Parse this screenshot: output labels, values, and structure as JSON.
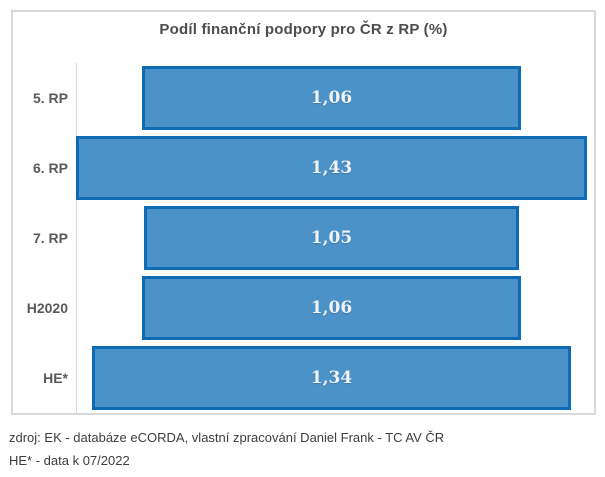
{
  "chart": {
    "title": "Podíl finanční podpory pro ČR z RP (%)"
  },
  "footer": {
    "source": "zdroj: EK - databáze eCORDA, vlastní zpracování Daniel Frank - TC AV ČR",
    "note": "HE* - data k 07/2022"
  },
  "colors": {
    "bar_fill": "#4b92c9",
    "bar_border": "#0f6ab4",
    "value_text": "#f2f2f2",
    "axis_line": "#d9d9d9",
    "chart_border": "#d9d9d9",
    "title_text": "#4d4d4d",
    "category_text": "#595959"
  },
  "chart_data": {
    "type": "bar",
    "subtype": "funnel-centered-horizontal-bars",
    "title": "Podíl finanční podpory pro ČR z RP (%)",
    "categories": [
      "5. RP",
      "6. RP",
      "7. RP",
      "H2020",
      "HE*"
    ],
    "values": [
      1.06,
      1.43,
      1.05,
      1.06,
      1.34
    ],
    "value_labels": [
      "1,06",
      "1,43",
      "1,05",
      "1,06",
      "1,34"
    ],
    "xlabel": "",
    "ylabel": "",
    "xlim": [
      0,
      1.43
    ],
    "grid": false,
    "legend": false,
    "data_labels": "inside-center",
    "notes": "bars centered on common vertical midline, width proportional to value"
  }
}
